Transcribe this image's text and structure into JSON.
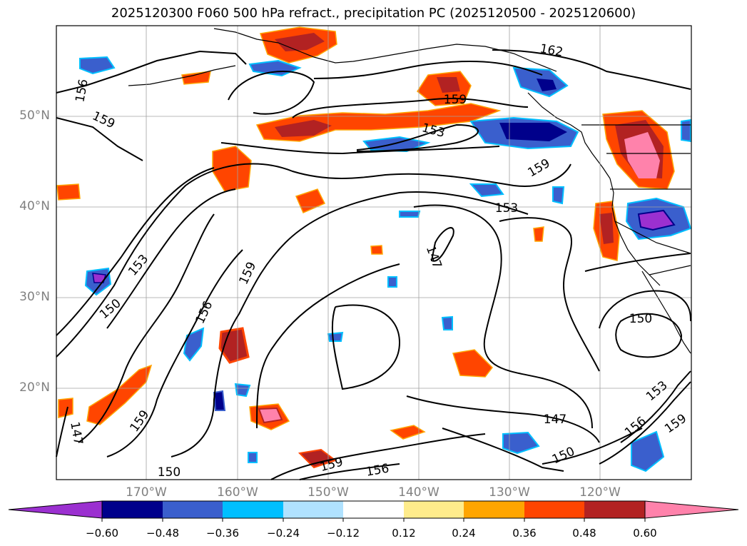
{
  "title": "2025120300 F060 500 hPa refract., precipitation PC (2025120500 - 2025120600)",
  "latitude_labels": [
    "50°N",
    "40°N",
    "30°N",
    "20°N"
  ],
  "longitude_labels": [
    "170°W",
    "160°W",
    "150°W",
    "140°W",
    "130°W",
    "120°W"
  ],
  "contour_labels": [
    "156",
    "159",
    "162",
    "159",
    "153",
    "159",
    "153",
    "147",
    "153",
    "159",
    "150",
    "156",
    "150",
    "153",
    "156",
    "159",
    "147",
    "150",
    "159",
    "147",
    "150",
    "159",
    "156"
  ],
  "colorbar": {
    "ticks": [
      "−0.60",
      "−0.48",
      "−0.36",
      "−0.24",
      "−0.12",
      "0.12",
      "0.24",
      "0.36",
      "0.48",
      "0.60"
    ],
    "colors": [
      "#9b30d0",
      "#00008b",
      "#3a5fcd",
      "#00bfff",
      "#b0e2ff",
      "#ffffff",
      "#ffec8b",
      "#ffa500",
      "#ff4500",
      "#b22222",
      "#ff82ab"
    ]
  },
  "colors": {
    "coast": "#000000",
    "grid": "#a0a0a0",
    "axis_label": "#808080"
  }
}
